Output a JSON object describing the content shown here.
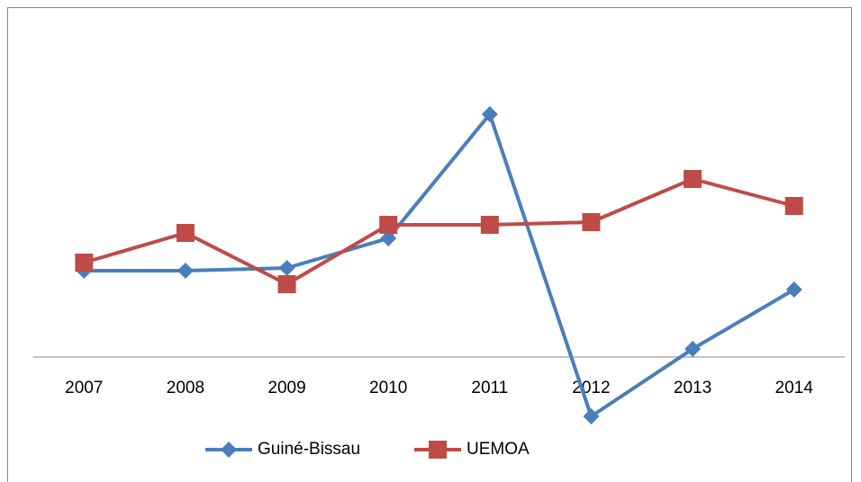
{
  "chart_data": {
    "type": "line",
    "categories": [
      "2007",
      "2008",
      "2009",
      "2010",
      "2011",
      "2012",
      "2013",
      "2014"
    ],
    "series": [
      {
        "name": "Guiné-Bissau",
        "color": "#4a7ebb",
        "marker": "diamond",
        "values": [
          3.2,
          3.2,
          3.3,
          4.4,
          9.0,
          -2.2,
          0.3,
          2.5
        ]
      },
      {
        "name": "UEMOA",
        "color": "#be4b48",
        "marker": "square",
        "values": [
          3.5,
          4.6,
          2.7,
          4.9,
          4.9,
          5.0,
          6.6,
          5.6
        ]
      }
    ],
    "ylim": [
      -4,
      12
    ],
    "legend": "bottom"
  }
}
